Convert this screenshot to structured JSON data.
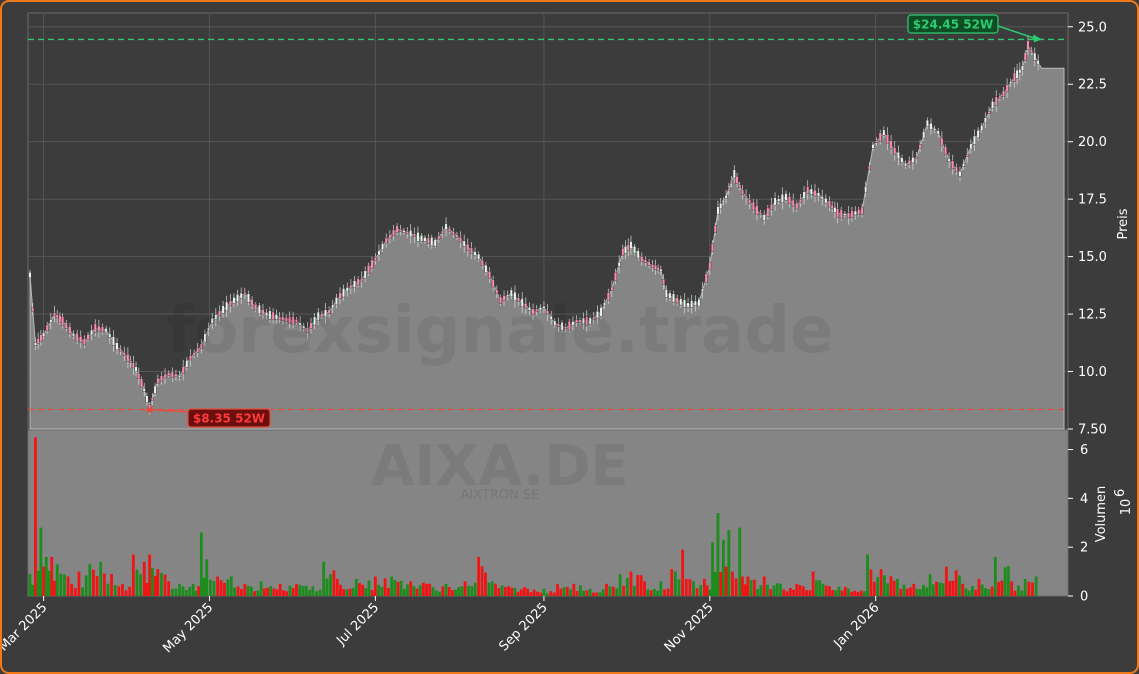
{
  "chart_data": {
    "type": "candlestick",
    "symbol": "AIXA.DE",
    "company": "AIXTRON SE",
    "watermark": "forexsignale.trade",
    "ylabel": "Preis",
    "ylabel_volume": "Volumen",
    "volume_exponent_base": "10",
    "volume_exponent": "6",
    "ylim": [
      7.5,
      25.6
    ],
    "volume_ylim": [
      0,
      6.8
    ],
    "y_ticks": [
      "7.50",
      "10.0",
      "12.5",
      "15.0",
      "17.5",
      "20.0",
      "22.5",
      "25.0"
    ],
    "volume_ticks": [
      "0",
      "2",
      "4",
      "6"
    ],
    "x_ticks": [
      "Mar 2025",
      "May 2025",
      "Jul 2025",
      "Sep 2025",
      "Nov 2025",
      "Jan 2026"
    ],
    "high_52w": 24.45,
    "low_52w": 8.35,
    "high_label": "$24.45 52W",
    "low_label": "$8.35 52W",
    "close_series": [
      [
        "2025-02-24",
        14.2
      ],
      [
        "2025-02-26",
        11.2
      ],
      [
        "2025-03-01",
        11.6
      ],
      [
        "2025-03-05",
        12.5
      ],
      [
        "2025-03-08",
        12.2
      ],
      [
        "2025-03-12",
        11.6
      ],
      [
        "2025-03-16",
        11.3
      ],
      [
        "2025-03-20",
        11.9
      ],
      [
        "2025-03-24",
        11.8
      ],
      [
        "2025-03-28",
        11.1
      ],
      [
        "2025-04-01",
        10.6
      ],
      [
        "2025-04-04",
        10.1
      ],
      [
        "2025-04-07",
        9.2
      ],
      [
        "2025-04-09",
        8.4
      ],
      [
        "2025-04-12",
        9.6
      ],
      [
        "2025-04-16",
        9.9
      ],
      [
        "2025-04-20",
        9.8
      ],
      [
        "2025-04-24",
        10.6
      ],
      [
        "2025-04-28",
        11.1
      ],
      [
        "2025-05-02",
        12.2
      ],
      [
        "2025-05-06",
        12.7
      ],
      [
        "2025-05-10",
        13.1
      ],
      [
        "2025-05-14",
        13.4
      ],
      [
        "2025-05-18",
        12.8
      ],
      [
        "2025-05-22",
        12.5
      ],
      [
        "2025-05-28",
        12.3
      ],
      [
        "2025-06-02",
        12.2
      ],
      [
        "2025-06-06",
        11.8
      ],
      [
        "2025-06-10",
        12.4
      ],
      [
        "2025-06-14",
        12.6
      ],
      [
        "2025-06-18",
        13.3
      ],
      [
        "2025-06-22",
        13.7
      ],
      [
        "2025-06-26",
        14.0
      ],
      [
        "2025-07-01",
        14.9
      ],
      [
        "2025-07-05",
        15.7
      ],
      [
        "2025-07-09",
        16.2
      ],
      [
        "2025-07-14",
        16.0
      ],
      [
        "2025-07-18",
        15.8
      ],
      [
        "2025-07-23",
        15.6
      ],
      [
        "2025-07-27",
        16.3
      ],
      [
        "2025-07-31",
        15.9
      ],
      [
        "2025-08-04",
        15.4
      ],
      [
        "2025-08-08",
        15.0
      ],
      [
        "2025-08-12",
        14.2
      ],
      [
        "2025-08-16",
        13.1
      ],
      [
        "2025-08-20",
        13.4
      ],
      [
        "2025-08-24",
        13.0
      ],
      [
        "2025-08-28",
        12.6
      ],
      [
        "2025-09-01",
        12.8
      ],
      [
        "2025-09-05",
        12.1
      ],
      [
        "2025-09-09",
        11.9
      ],
      [
        "2025-09-13",
        12.2
      ],
      [
        "2025-09-18",
        12.2
      ],
      [
        "2025-09-22",
        12.6
      ],
      [
        "2025-09-26",
        13.6
      ],
      [
        "2025-09-30",
        15.2
      ],
      [
        "2025-10-03",
        15.5
      ],
      [
        "2025-10-07",
        14.9
      ],
      [
        "2025-10-11",
        14.6
      ],
      [
        "2025-10-14",
        14.4
      ],
      [
        "2025-10-16",
        13.4
      ],
      [
        "2025-10-20",
        13.1
      ],
      [
        "2025-10-24",
        12.9
      ],
      [
        "2025-10-28",
        13.0
      ],
      [
        "2025-11-01",
        14.6
      ],
      [
        "2025-11-04",
        17.0
      ],
      [
        "2025-11-07",
        17.6
      ],
      [
        "2025-11-10",
        18.6
      ],
      [
        "2025-11-13",
        17.8
      ],
      [
        "2025-11-17",
        17.2
      ],
      [
        "2025-11-21",
        16.7
      ],
      [
        "2025-11-25",
        17.4
      ],
      [
        "2025-11-29",
        17.6
      ],
      [
        "2025-12-03",
        17.2
      ],
      [
        "2025-12-07",
        17.9
      ],
      [
        "2025-12-11",
        17.7
      ],
      [
        "2025-12-15",
        17.3
      ],
      [
        "2025-12-18",
        16.9
      ],
      [
        "2025-12-22",
        16.8
      ],
      [
        "2025-12-27",
        17.0
      ],
      [
        "2025-12-31",
        19.8
      ],
      [
        "2026-01-04",
        20.4
      ],
      [
        "2026-01-08",
        19.6
      ],
      [
        "2026-01-12",
        19.0
      ],
      [
        "2026-01-16",
        19.3
      ],
      [
        "2026-01-20",
        20.8
      ],
      [
        "2026-01-24",
        20.4
      ],
      [
        "2026-01-28",
        19.2
      ],
      [
        "2026-02-01",
        18.6
      ],
      [
        "2026-02-05",
        19.8
      ],
      [
        "2026-02-09",
        20.6
      ],
      [
        "2026-02-13",
        21.6
      ],
      [
        "2026-02-17",
        22.1
      ],
      [
        "2026-02-21",
        22.8
      ],
      [
        "2026-02-24",
        23.2
      ],
      [
        "2026-02-26",
        24.2
      ],
      [
        "2026-03-03",
        23.2
      ]
    ],
    "volume_series": [
      [
        "2025-02-24",
        0.9,
        "up"
      ],
      [
        "2025-02-26",
        6.5,
        "down"
      ],
      [
        "2025-02-28",
        2.8,
        "up"
      ],
      [
        "2025-03-02",
        1.6,
        "up"
      ],
      [
        "2025-03-04",
        1.6,
        "down"
      ],
      [
        "2025-03-06",
        1.3,
        "up"
      ],
      [
        "2025-03-10",
        0.8,
        "down"
      ],
      [
        "2025-03-14",
        1.0,
        "down"
      ],
      [
        "2025-03-18",
        1.3,
        "up"
      ],
      [
        "2025-03-22",
        1.4,
        "up"
      ],
      [
        "2025-03-26",
        0.9,
        "down"
      ],
      [
        "2025-03-30",
        0.5,
        "down"
      ],
      [
        "2025-04-03",
        1.7,
        "down"
      ],
      [
        "2025-04-07",
        1.4,
        "down"
      ],
      [
        "2025-04-09",
        1.7,
        "down"
      ],
      [
        "2025-04-12",
        1.1,
        "down"
      ],
      [
        "2025-04-16",
        0.6,
        "down"
      ],
      [
        "2025-04-20",
        0.5,
        "up"
      ],
      [
        "2025-04-25",
        0.5,
        "up"
      ],
      [
        "2025-04-28",
        2.6,
        "up"
      ],
      [
        "2025-04-30",
        1.5,
        "up"
      ],
      [
        "2025-05-04",
        0.8,
        "down"
      ],
      [
        "2025-05-09",
        0.8,
        "up"
      ],
      [
        "2025-05-14",
        0.5,
        "down"
      ],
      [
        "2025-05-20",
        0.6,
        "up"
      ],
      [
        "2025-05-27",
        0.5,
        "down"
      ],
      [
        "2025-06-02",
        0.5,
        "down"
      ],
      [
        "2025-06-08",
        0.4,
        "up"
      ],
      [
        "2025-06-12",
        1.4,
        "up"
      ],
      [
        "2025-06-17",
        0.7,
        "down"
      ],
      [
        "2025-06-24",
        0.7,
        "up"
      ],
      [
        "2025-07-01",
        0.8,
        "down"
      ],
      [
        "2025-07-07",
        0.8,
        "up"
      ],
      [
        "2025-07-14",
        0.6,
        "down"
      ],
      [
        "2025-07-21",
        0.5,
        "down"
      ],
      [
        "2025-07-27",
        0.5,
        "up"
      ],
      [
        "2025-08-03",
        0.6,
        "down"
      ],
      [
        "2025-08-08",
        1.6,
        "down"
      ],
      [
        "2025-08-13",
        0.6,
        "up"
      ],
      [
        "2025-08-19",
        0.4,
        "down"
      ],
      [
        "2025-08-26",
        0.3,
        "down"
      ],
      [
        "2025-09-01",
        0.3,
        "up"
      ],
      [
        "2025-09-06",
        0.5,
        "down"
      ],
      [
        "2025-09-12",
        0.5,
        "down"
      ],
      [
        "2025-09-18",
        0.3,
        "up"
      ],
      [
        "2025-09-24",
        0.5,
        "down"
      ],
      [
        "2025-09-29",
        0.9,
        "up"
      ],
      [
        "2025-10-03",
        1.0,
        "down"
      ],
      [
        "2025-10-08",
        0.6,
        "down"
      ],
      [
        "2025-10-14",
        0.6,
        "up"
      ],
      [
        "2025-10-18",
        1.1,
        "down"
      ],
      [
        "2025-10-22",
        1.9,
        "down"
      ],
      [
        "2025-10-26",
        0.6,
        "up"
      ],
      [
        "2025-10-30",
        0.7,
        "down"
      ],
      [
        "2025-11-02",
        2.2,
        "up"
      ],
      [
        "2025-11-04",
        3.4,
        "up"
      ],
      [
        "2025-11-06",
        2.3,
        "up"
      ],
      [
        "2025-11-08",
        2.7,
        "up"
      ],
      [
        "2025-11-12",
        2.8,
        "up"
      ],
      [
        "2025-11-15",
        0.8,
        "down"
      ],
      [
        "2025-11-21",
        0.8,
        "down"
      ],
      [
        "2025-11-27",
        0.5,
        "up"
      ],
      [
        "2025-12-03",
        0.5,
        "down"
      ],
      [
        "2025-12-09",
        1.0,
        "down"
      ],
      [
        "2025-12-15",
        0.4,
        "down"
      ],
      [
        "2025-12-22",
        0.3,
        "up"
      ],
      [
        "2025-12-29",
        1.7,
        "up"
      ],
      [
        "2026-01-03",
        1.1,
        "down"
      ],
      [
        "2026-01-09",
        0.7,
        "up"
      ],
      [
        "2026-01-15",
        0.5,
        "down"
      ],
      [
        "2026-01-21",
        0.9,
        "up"
      ],
      [
        "2026-01-27",
        1.2,
        "down"
      ],
      [
        "2026-02-02",
        0.5,
        "down"
      ],
      [
        "2026-02-08",
        0.7,
        "down"
      ],
      [
        "2026-02-14",
        1.6,
        "up"
      ],
      [
        "2026-02-20",
        0.6,
        "down"
      ],
      [
        "2026-02-25",
        0.7,
        "up"
      ],
      [
        "2026-03-01",
        0.8,
        "up"
      ]
    ]
  },
  "colors": {
    "background": "#3c3c3c",
    "area_fill": "#858585",
    "up": "#1c8c1c",
    "down": "#f01414",
    "high_line": "#2ecc71",
    "low_line": "#e74c3c",
    "frame": "#f07a1a"
  }
}
